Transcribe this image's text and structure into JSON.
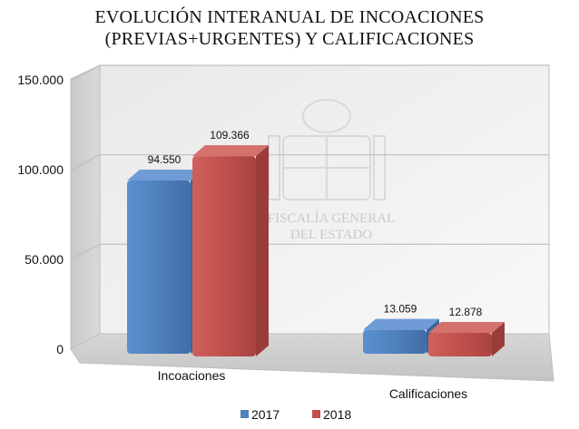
{
  "chart_data": {
    "type": "bar",
    "title": "EVOLUCIÓN INTERANUAL DE INCOACIONES",
    "subtitle": "(PREVIAS+URGENTES) Y CALIFICACIONES",
    "categories": [
      "Incoaciones",
      "Calificaciones"
    ],
    "series": [
      {
        "name": "2017",
        "values": [
          94550,
          13059
        ],
        "labels": [
          "94.550",
          "13.059"
        ],
        "color": "#4f81bd"
      },
      {
        "name": "2018",
        "values": [
          109366,
          12878
        ],
        "labels": [
          "109.366",
          "12.878"
        ],
        "color": "#c0504d"
      }
    ],
    "ylim": [
      0,
      150000
    ],
    "yticks": [
      0,
      50000,
      100000,
      150000
    ],
    "ytick_labels": [
      "0",
      "50.000",
      "100.000",
      "150.000"
    ],
    "grid": true,
    "legend_position": "bottom",
    "style": "3d-clustered-column"
  },
  "watermark": {
    "lines": [
      "FISCALÍA GENERAL",
      "DEL ESTADO"
    ]
  }
}
